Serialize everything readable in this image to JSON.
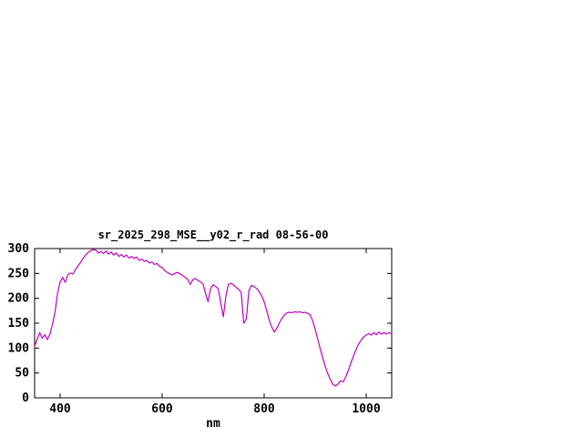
{
  "page": {
    "background_color": "#ffffff"
  },
  "chart_data": {
    "type": "line",
    "title": "sr_2025_298_MSE__y02_r_rad 08-56-00",
    "xlabel": "nm",
    "ylabel": "",
    "xlim": [
      350,
      1050
    ],
    "ylim": [
      0,
      300
    ],
    "x_ticks": [
      400,
      600,
      800,
      1000
    ],
    "y_ticks": [
      0,
      50,
      100,
      150,
      200,
      250,
      300
    ],
    "grid": false,
    "legend_position": "none",
    "line_color": "#bf00bf",
    "axis_color": "#000000",
    "series": [
      {
        "name": "sr_2025_298_MSE__y02_r_rad",
        "x": [
          350,
          355,
          360,
          365,
          370,
          375,
          380,
          385,
          390,
          395,
          400,
          405,
          410,
          415,
          420,
          425,
          430,
          435,
          440,
          445,
          450,
          455,
          460,
          465,
          470,
          475,
          480,
          485,
          490,
          495,
          500,
          505,
          510,
          515,
          520,
          525,
          530,
          535,
          540,
          545,
          550,
          555,
          560,
          565,
          570,
          575,
          580,
          585,
          590,
          595,
          600,
          605,
          610,
          615,
          620,
          625,
          630,
          635,
          640,
          645,
          650,
          655,
          660,
          665,
          670,
          675,
          680,
          685,
          690,
          695,
          700,
          705,
          710,
          715,
          720,
          725,
          730,
          735,
          740,
          745,
          750,
          755,
          760,
          765,
          770,
          775,
          780,
          785,
          790,
          795,
          800,
          805,
          810,
          815,
          820,
          825,
          830,
          835,
          840,
          845,
          850,
          855,
          860,
          865,
          870,
          875,
          880,
          885,
          890,
          895,
          900,
          905,
          910,
          915,
          920,
          925,
          930,
          935,
          940,
          945,
          950,
          955,
          960,
          965,
          970,
          975,
          980,
          985,
          990,
          995,
          1000,
          1005,
          1010,
          1015,
          1020,
          1025,
          1030,
          1035,
          1040,
          1045,
          1050
        ],
        "y": [
          103,
          118,
          131,
          120,
          127,
          117,
          128,
          148,
          172,
          210,
          233,
          242,
          232,
          247,
          251,
          249,
          258,
          265,
          272,
          280,
          287,
          292,
          296,
          298,
          297,
          291,
          294,
          290,
          295,
          289,
          293,
          287,
          291,
          284,
          288,
          283,
          287,
          281,
          284,
          280,
          283,
          276,
          279,
          274,
          276,
          271,
          273,
          268,
          270,
          264,
          262,
          256,
          252,
          249,
          247,
          250,
          252,
          249,
          246,
          242,
          238,
          228,
          237,
          240,
          236,
          233,
          229,
          210,
          193,
          220,
          227,
          224,
          219,
          190,
          163,
          205,
          228,
          230,
          227,
          222,
          218,
          212,
          150,
          158,
          215,
          226,
          224,
          220,
          214,
          205,
          193,
          175,
          156,
          142,
          132,
          140,
          151,
          160,
          167,
          171,
          172,
          171,
          173,
          172,
          173,
          171,
          172,
          170,
          167,
          155,
          138,
          118,
          98,
          80,
          62,
          48,
          36,
          27,
          24,
          28,
          34,
          32,
          42,
          55,
          70,
          84,
          97,
          108,
          116,
          122,
          126,
          129,
          126,
          131,
          127,
          132,
          128,
          131,
          128,
          131,
          129
        ]
      }
    ]
  }
}
